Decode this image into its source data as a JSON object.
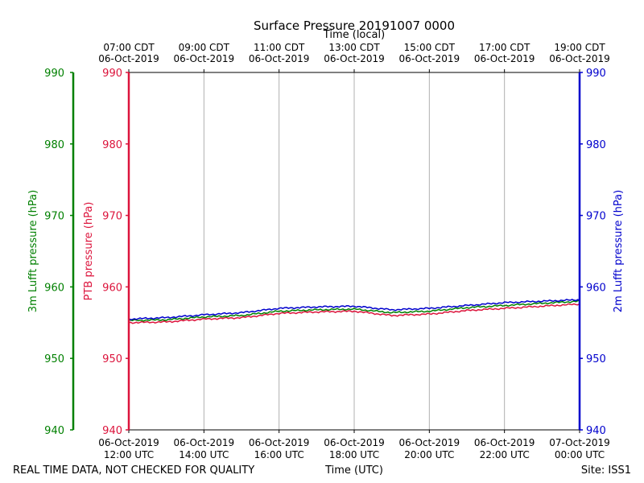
{
  "chart_data": {
    "type": "line",
    "title": "Surface Pressure 20191007 0000",
    "top_xlabel": "Time (local)",
    "xlabel": "Time (UTC)",
    "footer_left": "REAL TIME DATA, NOT CHECKED FOR QUALITY",
    "footer_right": "Site: ISS1",
    "x_range_hours_utc": [
      12,
      24
    ],
    "x_ticks_bottom": [
      {
        "line1": "06-Oct-2019",
        "line2": "12:00 UTC"
      },
      {
        "line1": "06-Oct-2019",
        "line2": "14:00 UTC"
      },
      {
        "line1": "06-Oct-2019",
        "line2": "16:00 UTC"
      },
      {
        "line1": "06-Oct-2019",
        "line2": "18:00 UTC"
      },
      {
        "line1": "06-Oct-2019",
        "line2": "20:00 UTC"
      },
      {
        "line1": "06-Oct-2019",
        "line2": "22:00 UTC"
      },
      {
        "line1": "07-Oct-2019",
        "line2": "00:00 UTC"
      }
    ],
    "x_ticks_top": [
      {
        "line1": "07:00 CDT",
        "line2": "06-Oct-2019"
      },
      {
        "line1": "09:00 CDT",
        "line2": "06-Oct-2019"
      },
      {
        "line1": "11:00 CDT",
        "line2": "06-Oct-2019"
      },
      {
        "line1": "13:00 CDT",
        "line2": "06-Oct-2019"
      },
      {
        "line1": "15:00 CDT",
        "line2": "06-Oct-2019"
      },
      {
        "line1": "17:00 CDT",
        "line2": "06-Oct-2019"
      },
      {
        "line1": "19:00 CDT",
        "line2": "06-Oct-2019"
      }
    ],
    "ylim": [
      940,
      990
    ],
    "y_ticks": [
      940,
      950,
      960,
      970,
      980,
      990
    ],
    "grid": "vertical",
    "axes": [
      {
        "label": "3m Lufft pressure (hPa)",
        "color": "#008000",
        "side": "far-left"
      },
      {
        "label": "PTB pressure (hPa)",
        "color": "#dc143c",
        "side": "left"
      },
      {
        "label": "2m Lufft pressure (hPa)",
        "color": "#0000cd",
        "side": "right"
      }
    ],
    "x": [
      12,
      13,
      14,
      15,
      16,
      17,
      18,
      19,
      20,
      21,
      22,
      23,
      24
    ],
    "series": [
      {
        "axis": "PTB pressure (hPa)",
        "color": "#dc143c",
        "values": [
          955.0,
          955.1,
          955.5,
          955.7,
          956.3,
          956.5,
          956.6,
          956.0,
          956.2,
          956.7,
          957.0,
          957.3,
          957.6
        ]
      },
      {
        "axis": "3m Lufft pressure (hPa)",
        "color": "#008000",
        "values": [
          955.3,
          955.4,
          955.8,
          956.0,
          956.6,
          956.8,
          956.9,
          956.4,
          956.6,
          957.1,
          957.4,
          957.7,
          958.0
        ]
      },
      {
        "axis": "2m Lufft pressure (hPa)",
        "color": "#0000cd",
        "values": [
          955.5,
          955.7,
          956.1,
          956.4,
          957.0,
          957.2,
          957.3,
          956.8,
          957.0,
          957.4,
          957.8,
          958.0,
          958.2
        ]
      }
    ]
  }
}
